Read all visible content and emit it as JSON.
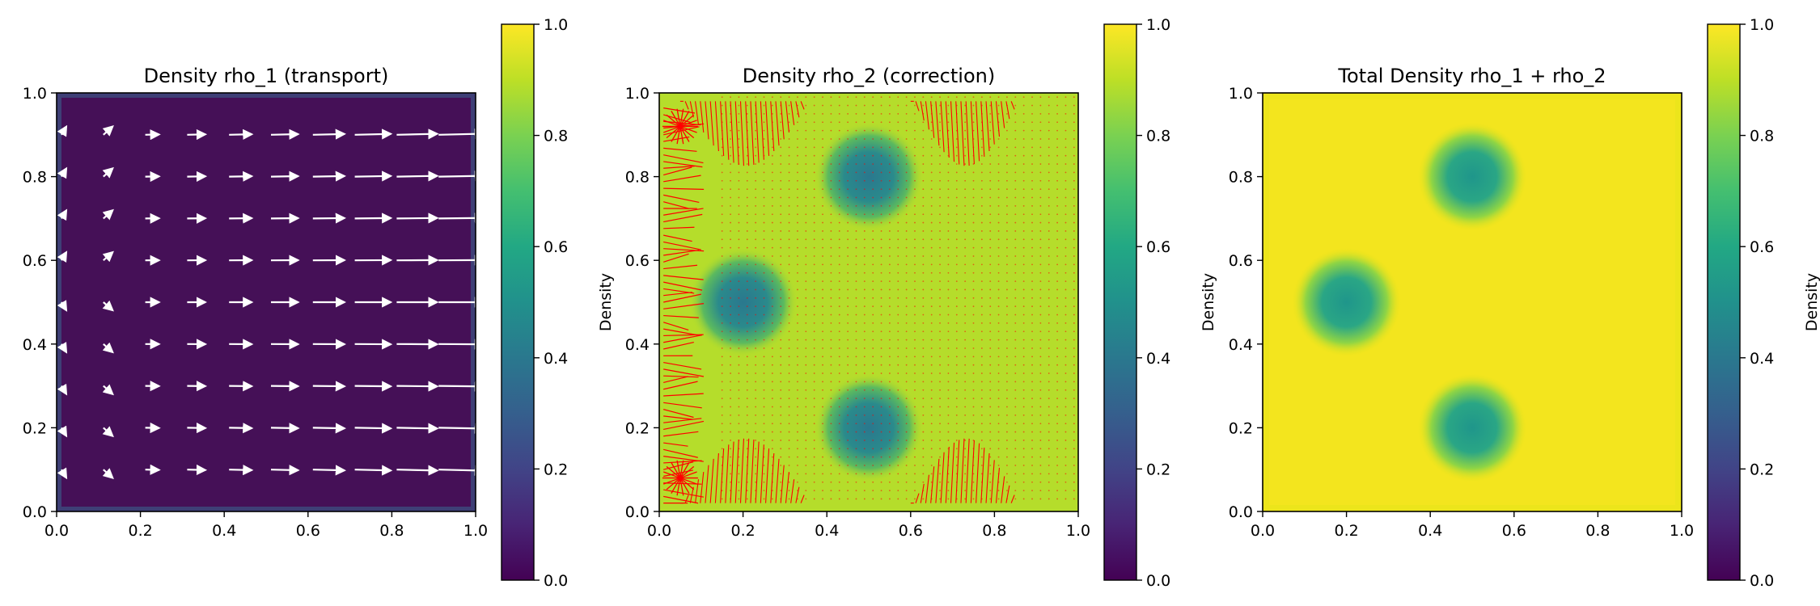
{
  "chart_data": [
    {
      "type": "heatmap",
      "title": "Density rho_1 (transport)",
      "xlabel": "",
      "ylabel": "",
      "xlim": [
        0.0,
        1.0
      ],
      "ylim": [
        0.0,
        1.0
      ],
      "x_ticks": [
        "0.0",
        "0.2",
        "0.4",
        "0.6",
        "0.8",
        "1.0"
      ],
      "y_ticks": [
        "0.0",
        "0.2",
        "0.4",
        "0.6",
        "0.8",
        "1.0"
      ],
      "colormap": "viridis",
      "field": "near-zero density everywhere (~0.03), slightly higher in a thin band at the domain edges",
      "overlay": {
        "type": "quiver",
        "color": "#ffffff",
        "description": "velocity arrows pointing right; magnitude grows with x (near zero at x=0, largest near x=1), with slight upward/downward deflection near top and bottom",
        "grid_x": [
          0.0,
          0.1,
          0.2,
          0.3,
          0.4,
          0.5,
          0.6,
          0.7,
          0.8,
          0.9
        ],
        "grid_y": [
          0.1,
          0.2,
          0.3,
          0.4,
          0.5,
          0.6,
          0.7,
          0.8,
          0.9
        ]
      },
      "colorbar": {
        "label": "Density",
        "range": [
          0.0,
          1.0
        ],
        "ticks": [
          "0.0",
          "0.2",
          "0.4",
          "0.6",
          "0.8",
          "1.0"
        ]
      }
    },
    {
      "type": "heatmap",
      "title": "Density rho_2 (correction)",
      "xlabel": "",
      "ylabel": "",
      "xlim": [
        0.0,
        1.0
      ],
      "ylim": [
        0.0,
        1.0
      ],
      "x_ticks": [
        "0.0",
        "0.2",
        "0.4",
        "0.6",
        "0.8",
        "1.0"
      ],
      "y_ticks": [
        "0.0",
        "0.2",
        "0.4",
        "0.6",
        "0.8",
        "1.0"
      ],
      "colormap": "viridis",
      "field": "background density ~0.9 with three circular depressions",
      "blobs": [
        {
          "x": 0.2,
          "y": 0.5,
          "min_density": 0.45,
          "radius": 0.1
        },
        {
          "x": 0.5,
          "y": 0.8,
          "min_density": 0.45,
          "radius": 0.1
        },
        {
          "x": 0.5,
          "y": 0.2,
          "min_density": 0.45,
          "radius": 0.1
        }
      ],
      "overlay": {
        "type": "quiver",
        "color": "#ff0000",
        "description": "dense field of small red arrows; concentrated arrow clusters along the left boundary (x<0.12), near the bottom-left and top-left corners, and arcs near the top/bottom edges around x=0.25-0.35 and x=0.6-0.85"
      },
      "colorbar": {
        "label": "Density",
        "range": [
          0.0,
          1.0
        ],
        "ticks": [
          "0.0",
          "0.2",
          "0.4",
          "0.6",
          "0.8",
          "1.0"
        ]
      }
    },
    {
      "type": "heatmap",
      "title": "Total Density rho_1 + rho_2",
      "xlabel": "",
      "ylabel": "",
      "xlim": [
        0.0,
        1.0
      ],
      "ylim": [
        0.0,
        1.0
      ],
      "x_ticks": [
        "0.0",
        "0.2",
        "0.4",
        "0.6",
        "0.8",
        "1.0"
      ],
      "y_ticks": [
        "0.0",
        "0.2",
        "0.4",
        "0.6",
        "0.8",
        "1.0"
      ],
      "colormap": "viridis",
      "field": "background density ~0.95 with three circular depressions",
      "blobs": [
        {
          "x": 0.2,
          "y": 0.5,
          "min_density": 0.55,
          "radius": 0.1
        },
        {
          "x": 0.5,
          "y": 0.8,
          "min_density": 0.55,
          "radius": 0.1
        },
        {
          "x": 0.5,
          "y": 0.2,
          "min_density": 0.55,
          "radius": 0.1
        }
      ],
      "colorbar": {
        "label": "Density",
        "range": [
          0.0,
          1.0
        ],
        "ticks": [
          "0.0",
          "0.2",
          "0.4",
          "0.6",
          "0.8",
          "1.0"
        ]
      }
    }
  ]
}
